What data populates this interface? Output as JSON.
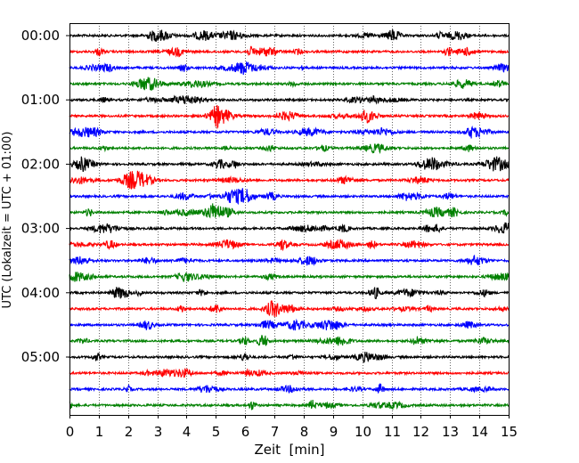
{
  "chart_data": {
    "type": "line",
    "title": "",
    "xlabel": "Zeit  [min]",
    "ylabel": "UTC (Lokalzeit = UTC + 01:00)",
    "xlim": [
      0,
      15
    ],
    "x_ticks": [
      0,
      1,
      2,
      3,
      4,
      5,
      6,
      7,
      8,
      9,
      10,
      11,
      12,
      13,
      14,
      15
    ],
    "y_tick_labels": [
      "00:00",
      "01:00",
      "02:00",
      "03:00",
      "04:00",
      "05:00"
    ],
    "grid": "vertical dotted",
    "trace_minutes": 15,
    "trace_count": 24,
    "trace_colors": [
      "#000000",
      "#ff0000",
      "#0000ff",
      "#008000"
    ],
    "series": [
      {
        "start": "00:00",
        "color": "#000000"
      },
      {
        "start": "00:15",
        "color": "#ff0000"
      },
      {
        "start": "00:30",
        "color": "#0000ff"
      },
      {
        "start": "00:45",
        "color": "#008000"
      },
      {
        "start": "01:00",
        "color": "#000000"
      },
      {
        "start": "01:15",
        "color": "#ff0000"
      },
      {
        "start": "01:30",
        "color": "#0000ff"
      },
      {
        "start": "01:45",
        "color": "#008000"
      },
      {
        "start": "02:00",
        "color": "#000000"
      },
      {
        "start": "02:15",
        "color": "#ff0000"
      },
      {
        "start": "02:30",
        "color": "#0000ff"
      },
      {
        "start": "02:45",
        "color": "#008000"
      },
      {
        "start": "03:00",
        "color": "#000000"
      },
      {
        "start": "03:15",
        "color": "#ff0000"
      },
      {
        "start": "03:30",
        "color": "#0000ff"
      },
      {
        "start": "03:45",
        "color": "#008000"
      },
      {
        "start": "04:00",
        "color": "#000000"
      },
      {
        "start": "04:15",
        "color": "#ff0000"
      },
      {
        "start": "04:30",
        "color": "#0000ff"
      },
      {
        "start": "04:45",
        "color": "#008000"
      },
      {
        "start": "05:00",
        "color": "#000000"
      },
      {
        "start": "05:15",
        "color": "#ff0000"
      },
      {
        "start": "05:30",
        "color": "#0000ff"
      },
      {
        "start": "05:45",
        "color": "#008000"
      }
    ]
  }
}
